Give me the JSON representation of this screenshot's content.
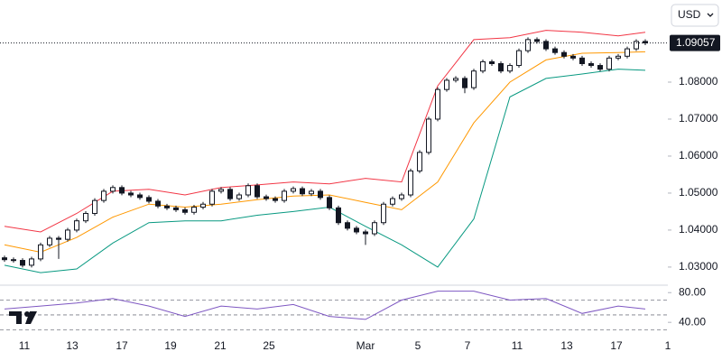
{
  "chart_data": {
    "type": "candlestick",
    "currency": "USD",
    "last_price": {
      "value": 1.09057,
      "label": "1.09057"
    },
    "xlim": [
      -0.5,
      73.5
    ],
    "xticks": [
      {
        "value": 2.2,
        "label": "11"
      },
      {
        "value": 7.5,
        "label": "13"
      },
      {
        "value": 13,
        "label": "17"
      },
      {
        "value": 18.4,
        "label": "19"
      },
      {
        "value": 23.9,
        "label": "21"
      },
      {
        "value": 29.3,
        "label": "25"
      },
      {
        "value": 40,
        "label": "Mar"
      },
      {
        "value": 45.8,
        "label": "5"
      },
      {
        "value": 51.3,
        "label": "7"
      },
      {
        "value": 56.8,
        "label": "11"
      },
      {
        "value": 62.3,
        "label": "13"
      },
      {
        "value": 67.8,
        "label": "17"
      },
      {
        "value": 73.5,
        "label": "1"
      }
    ],
    "ylim": [
      1.0251,
      1.1022
    ],
    "yticks": [
      {
        "value": 1.03,
        "label": "1.03000"
      },
      {
        "value": 1.04,
        "label": "1.04000"
      },
      {
        "value": 1.05,
        "label": "1.05000"
      },
      {
        "value": 1.06,
        "label": "1.06000"
      },
      {
        "value": 1.07,
        "label": "1.07000"
      },
      {
        "value": 1.08,
        "label": "1.08000"
      }
    ],
    "up_color": "#ffffff",
    "down_color": "#131722",
    "open": [
      1.0325,
      1.032,
      1.0318,
      1.0305,
      1.0322,
      1.036,
      1.0378,
      1.0375,
      1.04,
      1.0425,
      1.0445,
      1.048,
      1.0505,
      1.0515,
      1.05,
      1.0495,
      1.0488,
      1.0478,
      1.0465,
      1.046,
      1.0455,
      1.0448,
      1.0462,
      1.047,
      1.0505,
      1.051,
      1.0485,
      1.0495,
      1.052,
      1.049,
      1.0485,
      1.048,
      1.0505,
      1.0512,
      1.0498,
      1.0505,
      1.0488,
      1.046,
      1.042,
      1.0405,
      1.0395,
      1.039,
      1.042,
      1.047,
      1.0485,
      1.0495,
      1.056,
      1.061,
      1.07,
      1.078,
      1.0805,
      1.081,
      1.0785,
      1.083,
      1.0855,
      1.085,
      1.083,
      1.0845,
      1.0885,
      1.0915,
      1.091,
      1.089,
      1.088,
      1.087,
      1.0865,
      1.085,
      1.0845,
      1.0835,
      1.0865,
      1.087,
      1.089,
      1.091
    ],
    "high": [
      1.0331,
      1.0326,
      1.0324,
      1.0328,
      1.0366,
      1.0384,
      1.0384,
      1.0406,
      1.0431,
      1.0451,
      1.0486,
      1.0511,
      1.0521,
      1.0521,
      1.0506,
      1.0501,
      1.0494,
      1.0484,
      1.0471,
      1.0466,
      1.0461,
      1.0468,
      1.0476,
      1.0511,
      1.0516,
      1.0516,
      1.0501,
      1.0526,
      1.0526,
      1.0496,
      1.0491,
      1.0511,
      1.0518,
      1.0518,
      1.0511,
      1.0511,
      1.0494,
      1.0466,
      1.0426,
      1.0411,
      1.0401,
      1.0426,
      1.0476,
      1.0491,
      1.0501,
      1.0566,
      1.0616,
      1.0706,
      1.0786,
      1.0811,
      1.0816,
      1.0816,
      1.0836,
      1.0861,
      1.0861,
      1.0856,
      1.0851,
      1.0891,
      1.0921,
      1.0921,
      1.0916,
      1.0896,
      1.0886,
      1.0876,
      1.0871,
      1.0856,
      1.0851,
      1.0871,
      1.0876,
      1.0896,
      1.0916,
      1.0916
    ],
    "low": [
      1.0314,
      1.0312,
      1.0299,
      1.0299,
      1.0316,
      1.0354,
      1.0322,
      1.0369,
      1.0394,
      1.0419,
      1.0439,
      1.0474,
      1.0499,
      1.0494,
      1.0489,
      1.0482,
      1.0472,
      1.0459,
      1.0454,
      1.0449,
      1.0442,
      1.0442,
      1.0456,
      1.0464,
      1.0499,
      1.0479,
      1.0479,
      1.0489,
      1.0484,
      1.0479,
      1.0474,
      1.0474,
      1.0499,
      1.0492,
      1.0492,
      1.0482,
      1.0454,
      1.0414,
      1.0399,
      1.0389,
      1.036,
      1.0384,
      1.0414,
      1.0464,
      1.0479,
      1.0489,
      1.0554,
      1.0604,
      1.0694,
      1.0774,
      1.0799,
      1.077,
      1.0779,
      1.0824,
      1.0844,
      1.0824,
      1.0824,
      1.0839,
      1.0879,
      1.0904,
      1.0884,
      1.0874,
      1.0864,
      1.0859,
      1.0844,
      1.0839,
      1.0829,
      1.0829,
      1.0859,
      1.0864,
      1.0884,
      1.09
    ],
    "close": [
      1.032,
      1.0318,
      1.0305,
      1.0322,
      1.036,
      1.0378,
      1.0375,
      1.04,
      1.0425,
      1.0445,
      1.048,
      1.0505,
      1.0515,
      1.05,
      1.0495,
      1.0488,
      1.0478,
      1.0465,
      1.046,
      1.0455,
      1.0448,
      1.0462,
      1.047,
      1.0505,
      1.051,
      1.0485,
      1.0495,
      1.052,
      1.049,
      1.0485,
      1.048,
      1.0505,
      1.0512,
      1.0498,
      1.0505,
      1.0488,
      1.046,
      1.042,
      1.0405,
      1.0395,
      1.039,
      1.042,
      1.047,
      1.0485,
      1.0495,
      1.056,
      1.061,
      1.07,
      1.078,
      1.0805,
      1.081,
      1.0785,
      1.083,
      1.0855,
      1.085,
      1.083,
      1.0845,
      1.0885,
      1.0915,
      1.091,
      1.089,
      1.088,
      1.087,
      1.0865,
      1.085,
      1.0845,
      1.0835,
      1.0865,
      1.087,
      1.089,
      1.091,
      1.0906
    ],
    "bands": {
      "x": [
        0,
        4,
        8,
        12,
        16,
        20,
        24,
        28,
        32,
        36,
        40,
        44,
        48,
        52,
        56,
        60,
        64,
        68,
        71
      ],
      "upper": [
        1.041,
        1.0395,
        1.0445,
        1.0505,
        1.051,
        1.0495,
        1.0515,
        1.0522,
        1.053,
        1.0525,
        1.054,
        1.053,
        1.079,
        1.0915,
        1.092,
        1.094,
        1.0935,
        1.0925,
        1.0935
      ],
      "middle": [
        1.036,
        1.034,
        1.038,
        1.0435,
        1.047,
        1.0462,
        1.047,
        1.0482,
        1.0492,
        1.0495,
        1.0475,
        1.0455,
        1.053,
        1.069,
        1.08,
        1.086,
        1.0878,
        1.088,
        1.0882
      ],
      "lower": [
        1.0305,
        1.0285,
        1.0295,
        1.0365,
        1.042,
        1.0425,
        1.0425,
        1.044,
        1.045,
        1.0462,
        1.041,
        1.036,
        1.03,
        1.043,
        1.076,
        1.081,
        1.0822,
        1.0835,
        1.0832
      ],
      "upper_color": "#f23645",
      "middle_color": "#ff9800",
      "lower_color": "#089981"
    },
    "rsi": {
      "x": [
        0,
        4,
        8,
        12,
        16,
        20,
        24,
        28,
        32,
        36,
        40,
        44,
        48,
        52,
        56,
        60,
        64,
        68,
        71
      ],
      "values": [
        58,
        62,
        66,
        72,
        62,
        48,
        62,
        58,
        64,
        48,
        44,
        70,
        82,
        82,
        70,
        72,
        52,
        62,
        58
      ],
      "color": "#7e57c2",
      "ylim": [
        22,
        90
      ],
      "yticks": [
        {
          "value": 80,
          "label": "80.00"
        },
        {
          "value": 40,
          "label": "40.00"
        }
      ],
      "levels": [
        70,
        50,
        30
      ]
    }
  }
}
